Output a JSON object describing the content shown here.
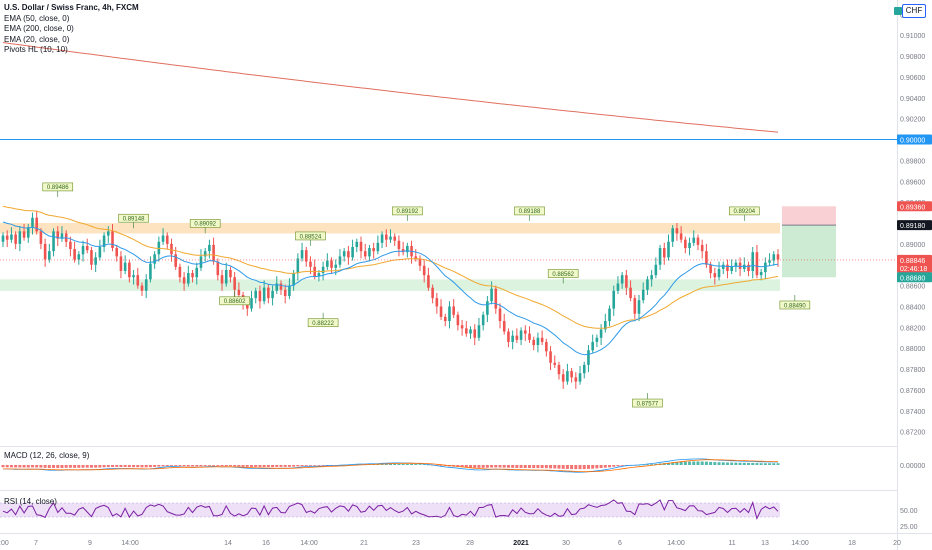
{
  "legend": {
    "title": "U.S. Dollar / Swiss Franc, 4h, FXCM",
    "ema50": "EMA (50, close, 0)",
    "ema200": "EMA (200, close, 0)",
    "ema20": "EMA (20, close, 0)",
    "pivots": "Pivots HL (10, 10)"
  },
  "currency_badge": "CHF",
  "colors": {
    "up": "#26a69a",
    "down": "#ef5350",
    "ema50": "#f0a830",
    "ema200": "#e06f5f",
    "ema20": "#2e9ae8",
    "hline": "#2196f3",
    "resistance_zone": "#fde3bf",
    "support_zone": "#dcf3df",
    "rsi": "#7b1fa2",
    "rsi_band": "#ede0f7",
    "macd_line": "#2196f3",
    "signal_line": "#ff6d00"
  },
  "chart_data": {
    "type": "candlestick",
    "y_ticks": [
      "0.91200",
      "0.91000",
      "0.90800",
      "0.90600",
      "0.90400",
      "0.90200",
      "0.90000",
      "0.89800",
      "0.89600",
      "0.89400",
      "0.89200",
      "0.89000",
      "0.88800",
      "0.88600",
      "0.88400",
      "0.88200",
      "0.88000",
      "0.87800",
      "0.87600",
      "0.87400",
      "0.87200"
    ],
    "ylim": [
      0.8712,
      0.9128
    ],
    "x_ticks": [
      "7",
      "9",
      "14:00",
      "14",
      "16",
      "14:00",
      "21",
      "23",
      "28",
      "30",
      "2021",
      "6",
      "14:00",
      "11",
      "13",
      "14:00",
      "18",
      "20",
      "14:00"
    ],
    "horizontal_line": {
      "value": 0.9,
      "label": "0.90000"
    },
    "resistance_zone": [
      0.891,
      0.892
    ],
    "support_zone": [
      0.8855,
      0.8866
    ],
    "position": {
      "target": 0.8936,
      "entry": 0.8918,
      "stop": 0.8868
    },
    "price_labels": [
      {
        "label": "0.89360",
        "color": "#ef5350"
      },
      {
        "label": "0.89180",
        "color": "#131722"
      },
      {
        "label": "0.88846",
        "color": "#ef5350",
        "sub": "02:46:18"
      },
      {
        "label": "0.88680",
        "color": "#26a69a"
      }
    ],
    "pivots": [
      {
        "label": "0.89486",
        "type": "high",
        "price": 0.8945
      },
      {
        "label": "0.89148",
        "type": "high",
        "price": 0.8915
      },
      {
        "label": "0.89092",
        "type": "high",
        "price": 0.891
      },
      {
        "label": "0.88602",
        "type": "low",
        "price": 0.8855
      },
      {
        "label": "0.88524",
        "type": "high",
        "price": 0.8898
      },
      {
        "label": "0.88222",
        "type": "low",
        "price": 0.8834
      },
      {
        "label": "0.89192",
        "type": "high",
        "price": 0.8922
      },
      {
        "label": "0.89188",
        "type": "high",
        "price": 0.8922
      },
      {
        "label": "0.88562",
        "type": "high",
        "price": 0.8862
      },
      {
        "label": "0.87577",
        "type": "low",
        "price": 0.8757
      },
      {
        "label": "0.89204",
        "type": "high",
        "price": 0.8922
      },
      {
        "label": "0.88490",
        "type": "low",
        "price": 0.8851
      }
    ],
    "closes": [
      0.8908,
      0.8904,
      0.8909,
      0.89,
      0.8912,
      0.8906,
      0.8916,
      0.8925,
      0.8912,
      0.89,
      0.8885,
      0.8893,
      0.8912,
      0.8905,
      0.891,
      0.8902,
      0.8895,
      0.8885,
      0.889,
      0.8898,
      0.8894,
      0.888,
      0.8887,
      0.8897,
      0.8908,
      0.8912,
      0.8896,
      0.8888,
      0.8874,
      0.8882,
      0.8868,
      0.887,
      0.886,
      0.8855,
      0.8866,
      0.8881,
      0.889,
      0.8902,
      0.8908,
      0.89,
      0.889,
      0.8878,
      0.8868,
      0.8862,
      0.8872,
      0.8868,
      0.8877,
      0.8888,
      0.8893,
      0.8899,
      0.8883,
      0.887,
      0.8862,
      0.8875,
      0.8868,
      0.8856,
      0.8851,
      0.8842,
      0.8838,
      0.8848,
      0.8855,
      0.8845,
      0.8858,
      0.8848,
      0.8855,
      0.8862,
      0.8856,
      0.885,
      0.886,
      0.8872,
      0.8886,
      0.8894,
      0.8883,
      0.8878,
      0.8869,
      0.8872,
      0.8878,
      0.8884,
      0.8877,
      0.888,
      0.8888,
      0.8893,
      0.8887,
      0.8897,
      0.8902,
      0.8893,
      0.8888,
      0.8896,
      0.8893,
      0.8901,
      0.8909,
      0.8904,
      0.8907,
      0.8903,
      0.8895,
      0.8892,
      0.8898,
      0.8888,
      0.8886,
      0.8879,
      0.887,
      0.8858,
      0.8848,
      0.884,
      0.883,
      0.8826,
      0.884,
      0.8832,
      0.8822,
      0.8819,
      0.8814,
      0.8818,
      0.881,
      0.8822,
      0.8832,
      0.8845,
      0.8857,
      0.8838,
      0.8826,
      0.8816,
      0.8806,
      0.8812,
      0.8808,
      0.8817,
      0.8814,
      0.8808,
      0.8803,
      0.881,
      0.8806,
      0.8797,
      0.8786,
      0.8784,
      0.8775,
      0.8768,
      0.8778,
      0.8772,
      0.8768,
      0.8776,
      0.8784,
      0.8798,
      0.8806,
      0.881,
      0.8818,
      0.8826,
      0.8838,
      0.8855,
      0.8862,
      0.887,
      0.8858,
      0.8848,
      0.8833,
      0.8846,
      0.8856,
      0.8866,
      0.887,
      0.888,
      0.8896,
      0.8887,
      0.8902,
      0.8915,
      0.891,
      0.8904,
      0.8896,
      0.8901,
      0.8906,
      0.8899,
      0.8893,
      0.888,
      0.8872,
      0.8868,
      0.8876,
      0.888,
      0.8874,
      0.8878,
      0.8882,
      0.8876,
      0.888,
      0.8874,
      0.8892,
      0.887,
      0.8873,
      0.8882,
      0.8884,
      0.889,
      0.8885
    ],
    "indicator_panes": [
      {
        "name": "MACD (12, 26, close, 9)",
        "axis_label": "0.00000"
      },
      {
        "name": "RSI (14, close)",
        "axis_labels": [
          "50.00",
          "25.00"
        ]
      }
    ]
  }
}
